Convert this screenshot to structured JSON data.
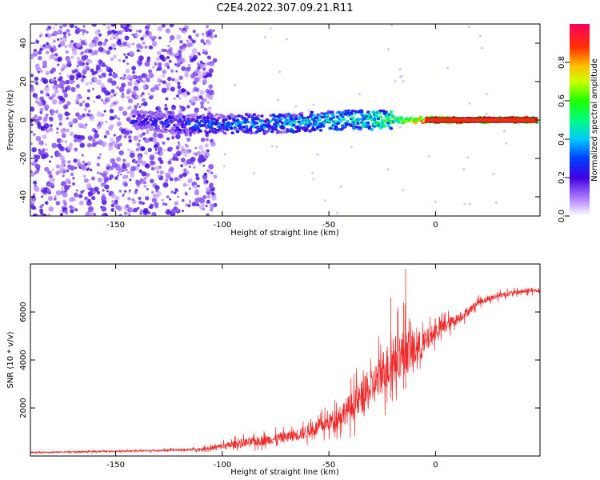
{
  "title": "C2E4.2022.307.09.21.R11",
  "chart_data": [
    {
      "type": "heatmap",
      "xlabel": "Height of straight line (km)",
      "ylabel": "Frequency (Hz)",
      "xlim": [
        -190,
        49
      ],
      "ylim": [
        -50,
        50
      ],
      "x_ticks": [
        -150,
        -100,
        -50,
        0
      ],
      "y_ticks": [
        -40,
        -20,
        0,
        20,
        40
      ],
      "colorbar": {
        "label": "Normalized spectral amplitude",
        "range": [
          0,
          1
        ],
        "ticks": [
          "0.0",
          "0.2",
          "0.4",
          "0.6",
          "0.8"
        ]
      },
      "ridge": {
        "x": [
          -140,
          -120,
          -100,
          -80,
          -60,
          -40,
          -20,
          0,
          20,
          48
        ],
        "freq": [
          0,
          -2,
          -2,
          -2,
          -1,
          0,
          0,
          0,
          0,
          0
        ],
        "amplitude": [
          0.25,
          0.3,
          0.35,
          0.4,
          0.45,
          0.5,
          0.6,
          0.85,
          0.9,
          0.9
        ]
      }
    },
    {
      "type": "line",
      "xlabel": "Height of straight line (km)",
      "ylabel": "SNR (10 * v/v)",
      "xlim": [
        -190,
        49
      ],
      "ylim": [
        0,
        8000
      ],
      "x_ticks": [
        -150,
        -100,
        -50,
        0
      ],
      "y_ticks": [
        2000,
        4000,
        6000
      ],
      "color": "#ee2a2a",
      "x": [
        -190,
        -170,
        -150,
        -130,
        -110,
        -100,
        -90,
        -80,
        -70,
        -60,
        -50,
        -40,
        -30,
        -25,
        -20,
        -15,
        -10,
        -5,
        0,
        10,
        15,
        20,
        30,
        40,
        49
      ],
      "y": [
        150,
        170,
        200,
        230,
        280,
        400,
        550,
        650,
        800,
        1000,
        1400,
        2000,
        2800,
        3500,
        4000,
        4300,
        4400,
        4700,
        5200,
        5700,
        6000,
        6400,
        6700,
        6850,
        6900
      ],
      "noise": [
        50,
        60,
        70,
        80,
        120,
        300,
        400,
        450,
        500,
        600,
        800,
        1300,
        1800,
        2000,
        2200,
        2100,
        1800,
        1200,
        800,
        500,
        400,
        300,
        250,
        200,
        200
      ],
      "peaks": [
        {
          "x": -14,
          "y": 7800
        },
        {
          "x": -21,
          "y": 6600
        },
        {
          "x": -15,
          "y": 6400
        }
      ]
    }
  ]
}
